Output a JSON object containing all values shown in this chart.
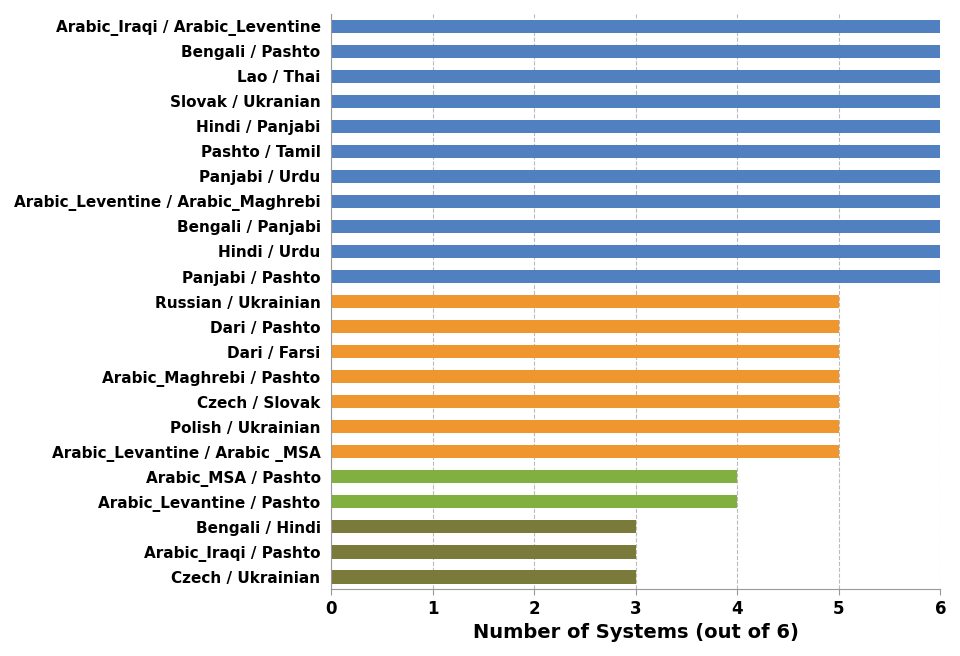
{
  "categories": [
    "Czech / Ukrainian",
    "Arabic_Iraqi / Pashto",
    "Bengali / Hindi",
    "Arabic_Levantine / Pashto",
    "Arabic_MSA / Pashto",
    "Arabic_Levantine / Arabic _MSA",
    "Polish / Ukrainian",
    "Czech / Slovak",
    "Arabic_Maghrebi / Pashto",
    "Dari / Farsi",
    "Dari / Pashto",
    "Russian / Ukrainian",
    "Panjabi / Pashto",
    "Hindi / Urdu",
    "Bengali / Panjabi",
    "Arabic_Leventine / Arabic_Maghrebi",
    "Panjabi / Urdu",
    "Pashto / Tamil",
    "Hindi / Panjabi",
    "Slovak / Ukranian",
    "Lao / Thai",
    "Bengali / Pashto",
    "Arabic_Iraqi / Arabic_Leventine"
  ],
  "values": [
    3,
    3,
    3,
    4,
    4,
    5,
    5,
    5,
    5,
    5,
    5,
    5,
    6,
    6,
    6,
    6,
    6,
    6,
    6,
    6,
    6,
    6,
    6
  ],
  "colors": [
    "#7a7a3a",
    "#7a7a3a",
    "#7a7a3a",
    "#82b040",
    "#82b040",
    "#f0962e",
    "#f0962e",
    "#f0962e",
    "#f0962e",
    "#f0962e",
    "#f0962e",
    "#f0962e",
    "#5080c0",
    "#5080c0",
    "#5080c0",
    "#5080c0",
    "#5080c0",
    "#5080c0",
    "#5080c0",
    "#5080c0",
    "#5080c0",
    "#5080c0",
    "#5080c0"
  ],
  "xlabel": "Number of Systems (out of 6)",
  "xlim": [
    0,
    6
  ],
  "xticks": [
    0,
    1,
    2,
    3,
    4,
    5,
    6
  ],
  "background_color": "#ffffff",
  "bar_height": 0.55,
  "grid_color": "#bbbbbb",
  "label_fontsize": 11,
  "xlabel_fontsize": 14
}
